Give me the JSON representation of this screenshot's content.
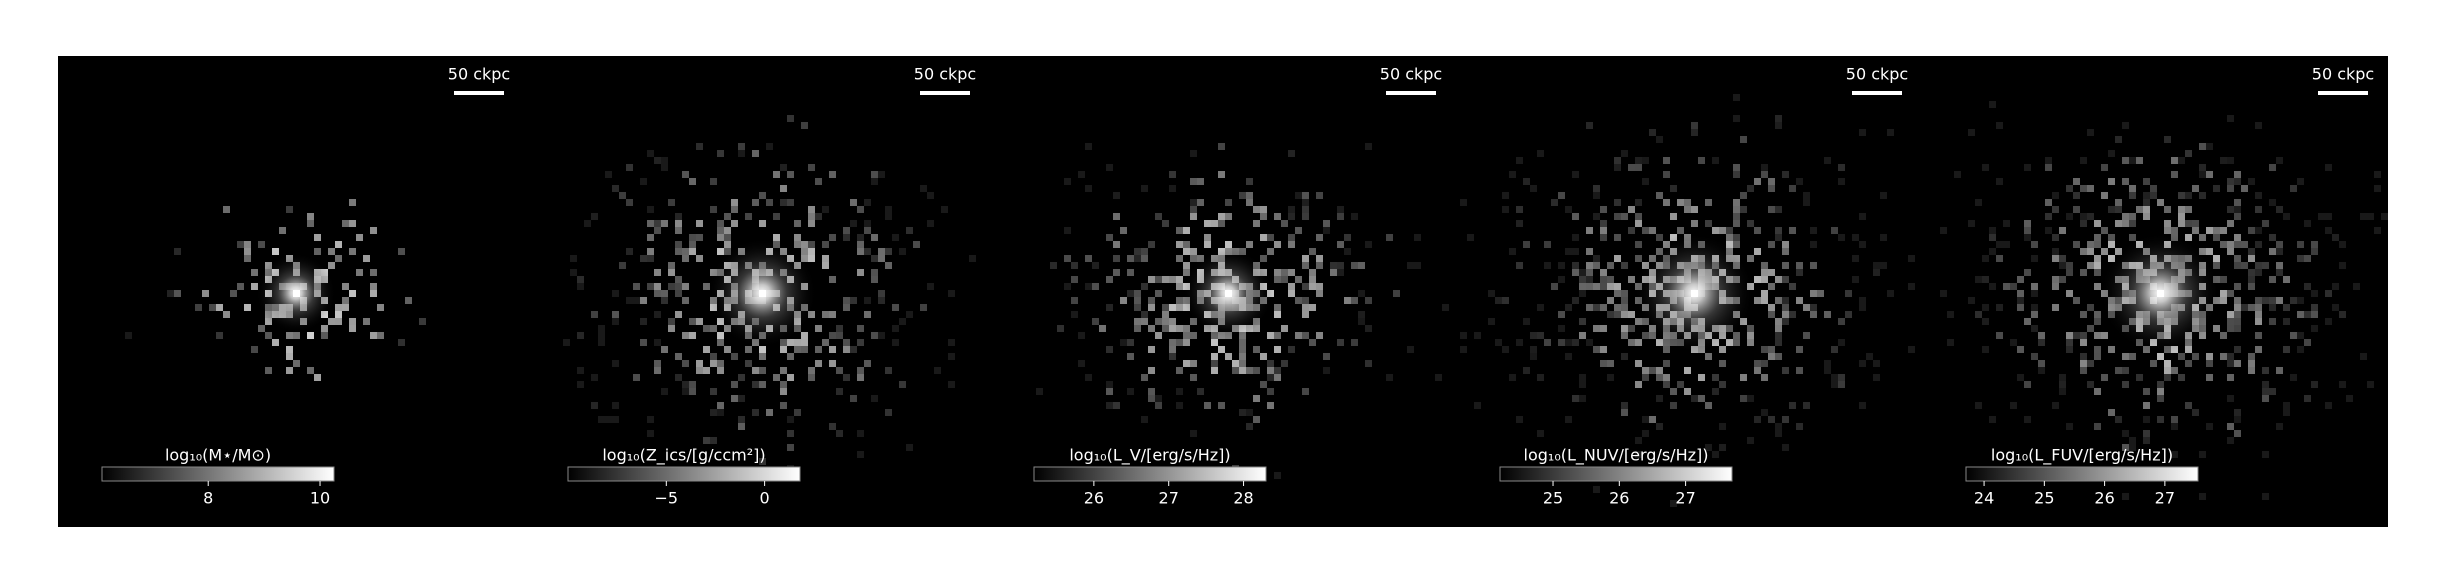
{
  "chart_data": [
    {
      "type": "image",
      "cmap": "gray",
      "scalebar_label": "50 ckpc",
      "colorbar_label": "log₁₀(M⋆/M⊙)",
      "clim": [
        6.1,
        10.25
      ],
      "cticks": [
        8,
        10
      ]
    },
    {
      "type": "image",
      "cmap": "gray",
      "scalebar_label": "50 ckpc",
      "colorbar_label": "log₁₀(Z_ics/[g/ccm²])",
      "clim": [
        -10,
        1.8
      ],
      "cticks": [
        {
          "value": -5,
          "label": "−5"
        },
        0
      ]
    },
    {
      "type": "image",
      "cmap": "gray",
      "scalebar_label": "50 ckpc",
      "colorbar_label": "log₁₀(L_V/[erg/s/Hz])",
      "clim": [
        25.2,
        28.3
      ],
      "cticks": [
        26,
        27,
        28
      ]
    },
    {
      "type": "image",
      "cmap": "gray",
      "scalebar_label": "50 ckpc",
      "colorbar_label": "log₁₀(L_NUV/[erg/s/Hz])",
      "clim": [
        24.2,
        27.7
      ],
      "cticks": [
        25,
        26,
        27
      ]
    },
    {
      "type": "image",
      "cmap": "gray",
      "scalebar_label": "50 ckpc",
      "colorbar_label": "log₁₀(L_FUV/[erg/s/Hz])",
      "clim": [
        23.7,
        27.55
      ],
      "cticks": [
        24,
        25,
        26,
        27
      ]
    }
  ]
}
